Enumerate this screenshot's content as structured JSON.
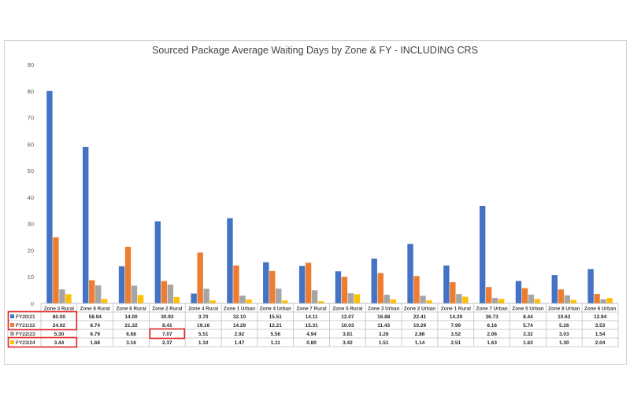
{
  "chart_data": {
    "type": "bar",
    "title": "Sourced Package Average Waiting Days by Zone & FY - INCLUDING CRS",
    "xlabel": "",
    "ylabel": "",
    "ylim": [
      0,
      90
    ],
    "yticks": [
      "0",
      "10",
      "20",
      "30",
      "40",
      "50",
      "60",
      "70",
      "80",
      "90"
    ],
    "grid": false,
    "legend": "data table below chart",
    "categories": [
      "Zone 3 Rural",
      "Zone 8 Rural",
      "Zone 6 Rural",
      "Zone 2 Rural",
      "Zone 4 Rural",
      "Zone 1 Urban",
      "Zone 4 Urban",
      "Zone 7 Rural",
      "Zone 5 Rural",
      "Zone 3 Urban",
      "Zone 2 Urban",
      "Zone 1 Rural",
      "Zone 7 Urban",
      "Zone 5 Urban",
      "Zone 8 Urban",
      "Zone 6 Urban"
    ],
    "series": [
      {
        "name": "FY20/21",
        "color": "#4472c4",
        "values": [
          80.0,
          58.94,
          14.0,
          30.93,
          3.7,
          32.1,
          15.51,
          14.11,
          12.07,
          16.88,
          22.41,
          14.29,
          36.73,
          8.44,
          10.63,
          12.94
        ],
        "labels": [
          "80.00",
          "58.94",
          "14.00",
          "30.93",
          "3.70",
          "32.10",
          "15.51",
          "14.11",
          "12.07",
          "16.88",
          "22.41",
          "14.29",
          "36.73",
          "8.44",
          "10.63",
          "12.94"
        ]
      },
      {
        "name": "FY21/22",
        "color": "#ed7d31",
        "values": [
          24.92,
          8.74,
          21.32,
          8.41,
          19.16,
          14.29,
          12.21,
          15.31,
          10.03,
          11.43,
          10.29,
          7.99,
          6.16,
          5.74,
          5.26,
          3.53
        ],
        "labels": [
          "24.92",
          "8.74",
          "21.32",
          "8.41",
          "19.16",
          "14.29",
          "12.21",
          "15.31",
          "10.03",
          "11.43",
          "10.29",
          "7.99",
          "6.16",
          "5.74",
          "5.26",
          "3.53"
        ]
      },
      {
        "name": "FY22/23",
        "color": "#a5a5a5",
        "values": [
          5.3,
          6.79,
          6.68,
          7.07,
          5.51,
          2.92,
          5.56,
          4.94,
          3.81,
          3.26,
          2.86,
          3.52,
          2.06,
          3.32,
          3.03,
          1.54
        ],
        "labels": [
          "5.30",
          "6.79",
          "6.68",
          "7.07",
          "5.51",
          "2.92",
          "5.56",
          "4.94",
          "3.81",
          "3.26",
          "2.86",
          "3.52",
          "2.06",
          "3.32",
          "3.03",
          "1.54"
        ]
      },
      {
        "name": "FY23/24",
        "color": "#ffc000",
        "values": [
          3.44,
          1.68,
          3.16,
          2.37,
          1.1,
          1.47,
          1.11,
          0.8,
          3.42,
          1.51,
          1.14,
          2.51,
          1.63,
          1.63,
          1.3,
          2.04
        ],
        "labels": [
          "3.44",
          "1.68",
          "3.16",
          "2.37",
          "1.10",
          "1.47",
          "1.11",
          "0.80",
          "3.42",
          "1.51",
          "1.14",
          "2.51",
          "1.63",
          "1.63",
          "1.30",
          "2.04"
        ]
      }
    ],
    "highlights": [
      {
        "series": 0,
        "category": 0,
        "rows": 2,
        "color": "#e32626"
      },
      {
        "series": 2,
        "category": 3,
        "rows": 1,
        "color": "#e32626"
      },
      {
        "series": 3,
        "category": 0,
        "rows": 1,
        "color": "#e32626"
      }
    ]
  }
}
